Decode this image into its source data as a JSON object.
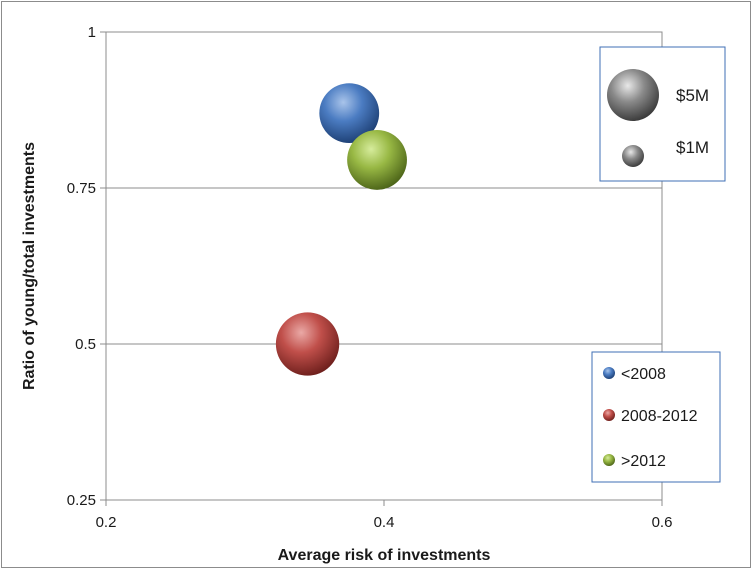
{
  "chart_data": {
    "type": "bubble",
    "title": "",
    "xlabel": "Average risk of investments",
    "ylabel": "Ratio of young/total investments",
    "xlim": [
      0.2,
      0.6
    ],
    "ylim": [
      0.25,
      1
    ],
    "x_ticks": [
      "0.2",
      "0.4",
      "0.6"
    ],
    "y_ticks": [
      "0.25",
      "0.5",
      "0.75",
      "1"
    ],
    "grid": "horizontal",
    "series": [
      {
        "name": "<2008",
        "x": 0.375,
        "y": 0.87,
        "size_musd": 4.1,
        "color": "#3f6fb5"
      },
      {
        "name": "2008-2012",
        "x": 0.345,
        "y": 0.5,
        "size_musd": 4.6,
        "color": "#b84a46"
      },
      {
        "name": ">2012",
        "x": 0.395,
        "y": 0.795,
        "size_musd": 4.1,
        "color": "#8fb040"
      }
    ],
    "size_legend": [
      {
        "label": "$5M",
        "value_musd": 5
      },
      {
        "label": "$1M",
        "value_musd": 1
      }
    ],
    "series_legend_position": "bottom-right",
    "size_legend_position": "top-right"
  }
}
